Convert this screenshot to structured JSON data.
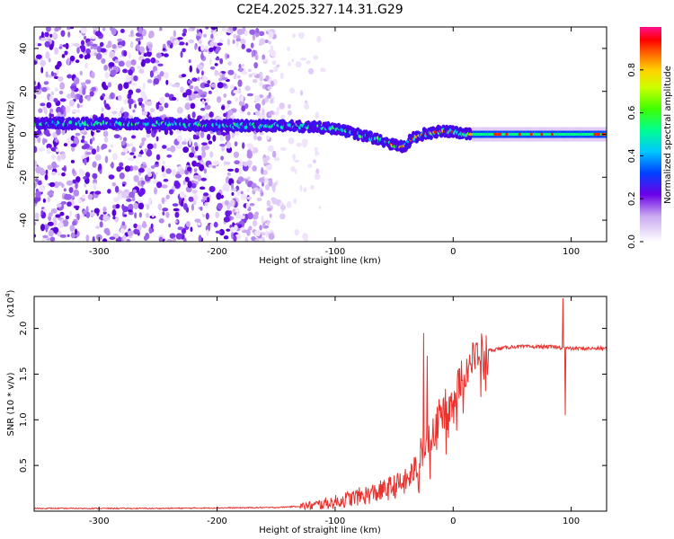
{
  "title": "C2E4.2025.327.14.31.G29",
  "chart_data": [
    {
      "type": "heatmap",
      "xlabel": "Height of straight line (km)",
      "ylabel": "Frequency (Hz)",
      "xlim": [
        -355,
        130
      ],
      "ylim": [
        -50,
        50
      ],
      "x_ticks": [
        -300,
        -200,
        -100,
        0,
        100
      ],
      "y_ticks": [
        -40,
        -20,
        0,
        20,
        40
      ],
      "colorbar": {
        "label": "Normalized spectral amplitude",
        "range": [
          0,
          1
        ],
        "ticks": [
          0.0,
          0.2,
          0.4,
          0.6,
          0.8
        ],
        "tick_labels": [
          "0.0",
          "0.2",
          "0.4",
          "0.6",
          "0.8"
        ]
      },
      "ridge": {
        "x": [
          -355,
          -300,
          -250,
          -200,
          -150,
          -120,
          -100,
          -80,
          -60,
          -45,
          -40,
          -35,
          -25,
          -10,
          0,
          10,
          130
        ],
        "freq": [
          5,
          5,
          5,
          4,
          4,
          3.5,
          2.5,
          0,
          -3,
          -6,
          -5,
          -2,
          0,
          1.5,
          1,
          0,
          0
        ]
      },
      "scatter_extent_x": [
        -355,
        -150
      ]
    },
    {
      "type": "line",
      "xlabel": "Height of straight line (km)",
      "ylabel": "SNR (10 * v/v)",
      "y_scale_label": "(x10",
      "y_scale_exp": "4",
      "xlim": [
        -355,
        130
      ],
      "ylim": [
        0,
        2.35
      ],
      "x_ticks": [
        -300,
        -200,
        -100,
        0,
        100
      ],
      "y_ticks": [
        0.5,
        1.0,
        1.5,
        2.0
      ],
      "y_tick_labels": [
        "0.5",
        "1.0",
        "1.5",
        "2.0"
      ],
      "series_color": "#e8322e",
      "trend": {
        "x": [
          -355,
          -250,
          -150,
          -120,
          -100,
          -80,
          -60,
          -40,
          -30,
          -20,
          -10,
          0,
          10,
          20,
          30,
          50,
          80,
          100,
          130
        ],
        "y": [
          0.03,
          0.03,
          0.04,
          0.06,
          0.1,
          0.16,
          0.22,
          0.32,
          0.5,
          0.85,
          1.05,
          1.25,
          1.55,
          1.7,
          1.76,
          1.8,
          1.8,
          1.78,
          1.78
        ]
      },
      "spikes": [
        {
          "x": -25,
          "y": 1.95
        },
        {
          "x": -22,
          "y": 1.7
        },
        {
          "x": 93,
          "y": 2.33
        },
        {
          "x": 95,
          "y": 1.05
        }
      ]
    }
  ]
}
